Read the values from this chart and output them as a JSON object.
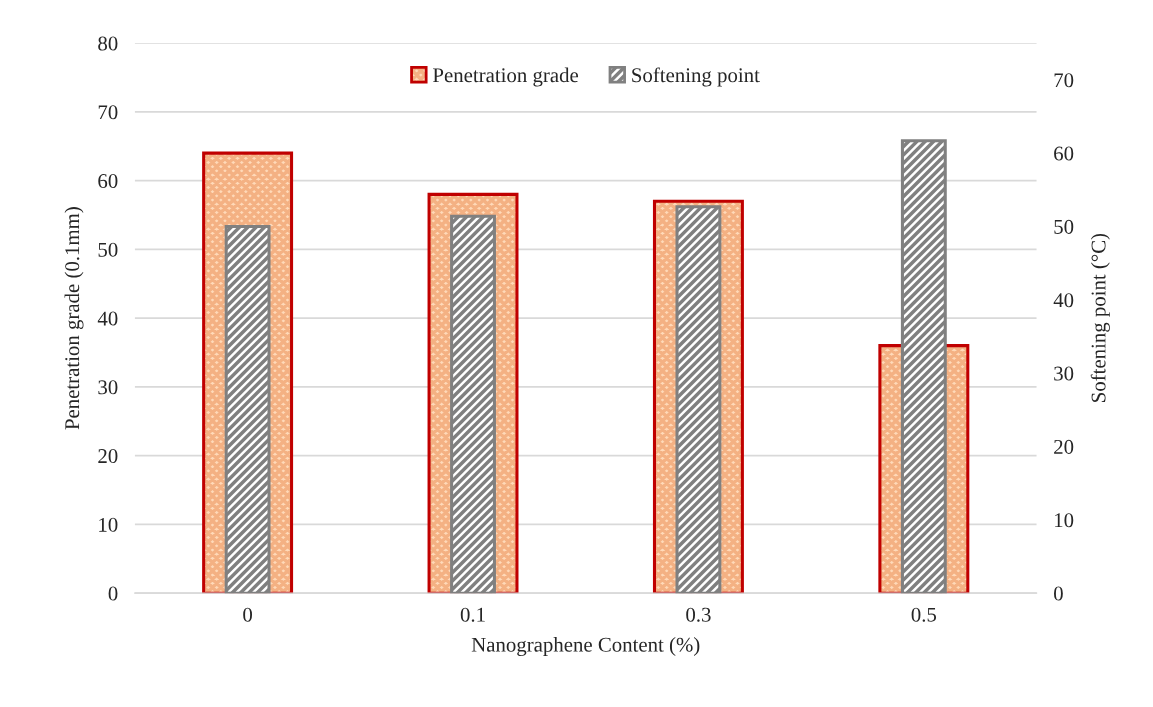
{
  "chart_data": {
    "type": "bar",
    "xlabel": "Nanographene Content (%)",
    "ylabel": "Penetration grade (0.1mm)",
    "y2label": "Softening point (°C)",
    "categories": [
      "0",
      "0.1",
      "0.3",
      "0.5"
    ],
    "series": [
      {
        "name": "Penetration grade",
        "color": "#c00000",
        "values": [
          64,
          58,
          57,
          36
        ]
      },
      {
        "name": "Softening point",
        "color": "#808080",
        "values": [
          50,
          51.4,
          52.7,
          61.7
        ],
        "axis": "y2"
      }
    ],
    "ylim": [
      0,
      80
    ],
    "yticks": [
      0,
      10,
      20,
      30,
      40,
      50,
      60,
      70,
      80
    ],
    "y2lim": [
      0,
      75
    ],
    "y2ticks": [
      0,
      10,
      20,
      30,
      40,
      50,
      60,
      70
    ],
    "grid": "y",
    "legend": "top"
  }
}
